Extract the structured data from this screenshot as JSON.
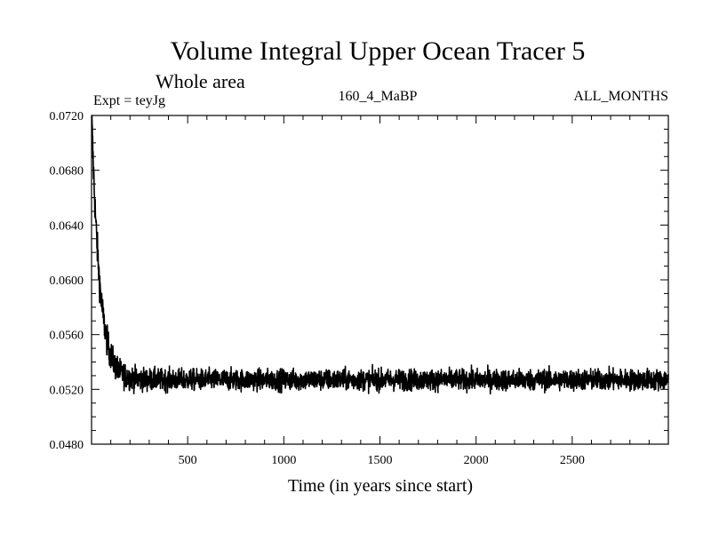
{
  "chart_data": {
    "type": "line",
    "title": "Volume Integral Upper Ocean Tracer 5",
    "subtitle": "Whole area",
    "expt_label": "Expt = teyJg",
    "run_label": "160_4_MaBP",
    "months_label": "ALL_MONTHS",
    "xlabel": "Time (in years since start)",
    "ylabel": "",
    "xlim": [
      0,
      3000
    ],
    "ylim": [
      0.048,
      0.072
    ],
    "x_ticks": [
      500,
      1000,
      1500,
      2000,
      2500
    ],
    "x_tick_labels": [
      "500",
      "1000",
      "1500",
      "2000",
      "2500"
    ],
    "y_ticks": [
      0.048,
      0.052,
      0.056,
      0.06,
      0.064,
      0.068,
      0.072
    ],
    "y_tick_labels": [
      "0.0480",
      "0.0520",
      "0.0560",
      "0.0600",
      "0.0640",
      "0.0680",
      "0.0720"
    ],
    "series": [
      {
        "name": "Tracer 5",
        "x_start": 1,
        "x_step": 1,
        "n": 3000,
        "initial": 0.0718,
        "equilibrium": 0.0527,
        "decay_years": 42,
        "noise_amplitude": 0.0007,
        "key_points": [
          [
            1,
            0.0718
          ],
          [
            25,
            0.066
          ],
          [
            50,
            0.061
          ],
          [
            100,
            0.0565
          ],
          [
            150,
            0.0545
          ],
          [
            250,
            0.0532
          ],
          [
            500,
            0.0528
          ],
          [
            1000,
            0.0528
          ],
          [
            1500,
            0.0527
          ],
          [
            2000,
            0.0527
          ],
          [
            2500,
            0.0527
          ],
          [
            3000,
            0.0528
          ]
        ]
      }
    ]
  }
}
